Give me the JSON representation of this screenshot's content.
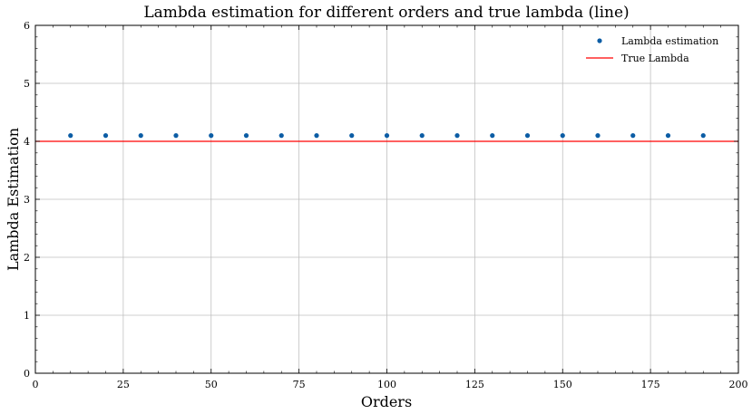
{
  "chart_data": {
    "type": "scatter",
    "title": "Lambda estimation for different orders and true lambda (line)",
    "xlabel": "Orders",
    "ylabel": "Lambda Estimation",
    "xlim": [
      0,
      200
    ],
    "ylim": [
      0,
      6
    ],
    "xticks": [
      0,
      25,
      50,
      75,
      100,
      125,
      150,
      175,
      200
    ],
    "yticks": [
      0,
      1,
      2,
      3,
      4,
      5,
      6
    ],
    "grid": true,
    "legend_position": "top-right",
    "series": [
      {
        "name": "Lambda estimation",
        "type": "scatter",
        "color": "#0c5da5",
        "x": [
          10,
          20,
          30,
          40,
          50,
          60,
          70,
          80,
          90,
          100,
          110,
          120,
          130,
          140,
          150,
          160,
          170,
          180,
          190
        ],
        "y": [
          4.1,
          4.1,
          4.1,
          4.1,
          4.1,
          4.1,
          4.1,
          4.1,
          4.1,
          4.1,
          4.1,
          4.1,
          4.1,
          4.1,
          4.1,
          4.1,
          4.1,
          4.1,
          4.1
        ]
      },
      {
        "name": "True Lambda",
        "type": "hline",
        "color": "#ff0000",
        "y": 4.0
      }
    ]
  }
}
